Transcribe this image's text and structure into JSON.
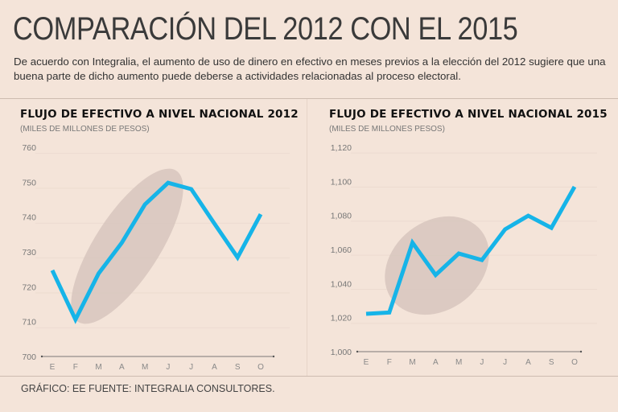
{
  "header": {
    "title": "COMPARACIÓN DEL 2012 CON EL 2015",
    "description": "De acuerdo con Integralia, el aumento de uso de dinero en efectivo en meses previos a la elección del 2012 sugiere que una buena parte de dicho aumento puede deberse a actividades relacionadas al proceso electoral."
  },
  "footer": "GRÁFICO: EE  FUENTE: INTEGRALIA CONSULTORES.",
  "colors": {
    "line": "#16b4e8",
    "highlight": "#d7c6bd",
    "background": "#f4e4d9"
  },
  "chart_data": [
    {
      "type": "line",
      "title": "FLUJO DE EFECTIVO A NIVEL NACIONAL 2012",
      "subtitle": "(MILES DE MILLONES DE PESOS)",
      "categories": [
        "E",
        "F",
        "M",
        "A",
        "M",
        "J",
        "J",
        "A",
        "S",
        "O"
      ],
      "values": [
        724.7,
        710.6,
        723.8,
        732.6,
        743.6,
        749.8,
        748,
        738.1,
        728.4,
        740.8
      ],
      "yticks": [
        "700",
        "710",
        "720",
        "730",
        "740",
        "750",
        "760"
      ],
      "ylim": [
        700,
        760
      ],
      "highlight": "F–J",
      "grid": true
    },
    {
      "type": "line",
      "title": "FLUJO DE EFECTIVO A NIVEL NACIONAL 2015",
      "subtitle": "(MILES DE MILLONES PESOS)",
      "categories": [
        "E",
        "F",
        "M",
        "A",
        "M",
        "J",
        "J",
        "A",
        "S",
        "O"
      ],
      "values": [
        1022.2,
        1023,
        1064,
        1045,
        1057.6,
        1053.8,
        1071.8,
        1079.8,
        1072.7,
        1096.8
      ],
      "yticks": [
        "1,000",
        "1,020",
        "1,040",
        "1,060",
        "1,080",
        "1,100",
        "1,120"
      ],
      "ylim": [
        1000,
        1120
      ],
      "highlight": "F–J",
      "grid": true
    }
  ]
}
